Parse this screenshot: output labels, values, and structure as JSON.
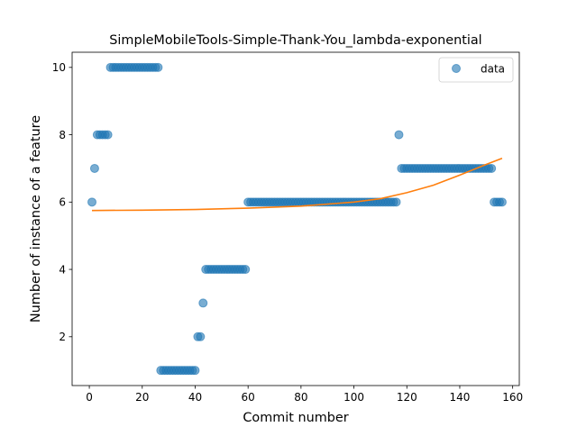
{
  "chart_data": {
    "type": "scatter",
    "title": "SimpleMobileTools-Simple-Thank-You_lambda-exponential",
    "xlabel": "Commit number",
    "ylabel": "Number of instance of a feature",
    "xlim": [
      -6.5,
      162.5
    ],
    "ylim": [
      0.55,
      10.45
    ],
    "xticks": [
      0,
      20,
      40,
      60,
      80,
      100,
      120,
      140,
      160
    ],
    "yticks": [
      2,
      4,
      6,
      8,
      10
    ],
    "grid": false,
    "legend": {
      "position": "top-right",
      "entries": [
        "data"
      ]
    },
    "series": [
      {
        "name": "data",
        "kind": "scatter",
        "color": "#1f77b4",
        "alpha": 0.6,
        "x": [
          1,
          2,
          3,
          4,
          5,
          6,
          7,
          8,
          9,
          10,
          11,
          12,
          13,
          14,
          15,
          16,
          17,
          18,
          19,
          20,
          21,
          22,
          23,
          24,
          25,
          26,
          27,
          28,
          29,
          30,
          31,
          32,
          33,
          34,
          35,
          36,
          37,
          38,
          39,
          40,
          41,
          42,
          43,
          44,
          45,
          46,
          47,
          48,
          49,
          50,
          51,
          52,
          53,
          54,
          55,
          56,
          57,
          58,
          59,
          60,
          61,
          62,
          63,
          64,
          65,
          66,
          67,
          68,
          69,
          70,
          71,
          72,
          73,
          74,
          75,
          76,
          77,
          78,
          79,
          80,
          81,
          82,
          83,
          84,
          85,
          86,
          87,
          88,
          89,
          90,
          91,
          92,
          93,
          94,
          95,
          96,
          97,
          98,
          99,
          100,
          101,
          102,
          103,
          104,
          105,
          106,
          107,
          108,
          109,
          110,
          111,
          112,
          113,
          114,
          115,
          116,
          117,
          118,
          119,
          120,
          121,
          122,
          123,
          124,
          125,
          126,
          127,
          128,
          129,
          130,
          131,
          132,
          133,
          134,
          135,
          136,
          137,
          138,
          139,
          140,
          141,
          142,
          143,
          144,
          145,
          146,
          147,
          148,
          149,
          150,
          151,
          152,
          153,
          154,
          155,
          156
        ],
        "y": [
          6,
          7,
          8,
          8,
          8,
          8,
          8,
          10,
          10,
          10,
          10,
          10,
          10,
          10,
          10,
          10,
          10,
          10,
          10,
          10,
          10,
          10,
          10,
          10,
          10,
          10,
          1,
          1,
          1,
          1,
          1,
          1,
          1,
          1,
          1,
          1,
          1,
          1,
          1,
          1,
          2,
          2,
          3,
          4,
          4,
          4,
          4,
          4,
          4,
          4,
          4,
          4,
          4,
          4,
          4,
          4,
          4,
          4,
          4,
          6,
          6,
          6,
          6,
          6,
          6,
          6,
          6,
          6,
          6,
          6,
          6,
          6,
          6,
          6,
          6,
          6,
          6,
          6,
          6,
          6,
          6,
          6,
          6,
          6,
          6,
          6,
          6,
          6,
          6,
          6,
          6,
          6,
          6,
          6,
          6,
          6,
          6,
          6,
          6,
          6,
          6,
          6,
          6,
          6,
          6,
          6,
          6,
          6,
          6,
          6,
          6,
          6,
          6,
          6,
          6,
          6,
          8,
          7,
          7,
          7,
          7,
          7,
          7,
          7,
          7,
          7,
          7,
          7,
          7,
          7,
          7,
          7,
          7,
          7,
          7,
          7,
          7,
          7,
          7,
          7,
          7,
          7,
          7,
          7,
          7,
          7,
          7,
          7,
          7,
          7,
          7,
          7,
          6,
          6,
          6,
          6
        ]
      },
      {
        "kind": "line",
        "color": "#ff7f0e",
        "x": [
          1,
          20,
          40,
          60,
          80,
          100,
          110,
          120,
          130,
          140,
          150,
          156
        ],
        "y": [
          5.75,
          5.76,
          5.78,
          5.82,
          5.88,
          6.0,
          6.1,
          6.28,
          6.5,
          6.8,
          7.12,
          7.3
        ]
      }
    ]
  }
}
